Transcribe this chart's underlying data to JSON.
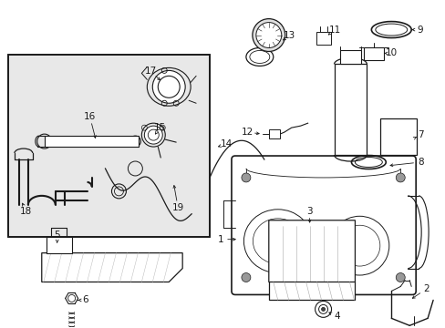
{
  "bg": "#ffffff",
  "lc": "#1a1a1a",
  "gray": "#888888",
  "lightgray": "#cccccc",
  "fig_w": 4.89,
  "fig_h": 3.6,
  "dpi": 100
}
